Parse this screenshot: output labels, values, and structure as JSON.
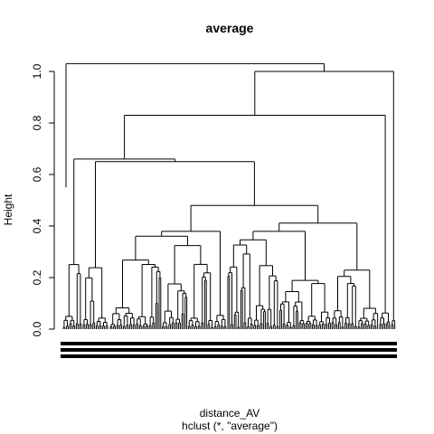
{
  "chart_data": {
    "type": "dendrogram",
    "title": "average",
    "xlabel": "distance_AV",
    "sub": "hclust (*, \"average\")",
    "ylabel": "Height",
    "ylim": [
      0,
      1.05
    ],
    "yticks": [
      0.0,
      0.2,
      0.4,
      0.6,
      0.8,
      1.0
    ],
    "ytick_labels": [
      "0.0",
      "0.2",
      "0.4",
      "0.6",
      "0.8",
      "1.0"
    ],
    "grid": false,
    "merges": [
      {
        "id": "root",
        "height": 1.03,
        "left": "L",
        "right": "R"
      },
      {
        "id": "R",
        "height": 1.0,
        "left": "R1",
        "right": "R2"
      },
      {
        "id": "R2",
        "height": 0.92
      },
      {
        "id": "R1",
        "height": 0.83,
        "left": "A",
        "right": "B"
      },
      {
        "id": "B",
        "height": 0.76
      },
      {
        "id": "A",
        "height": 0.66,
        "left": "A1",
        "right": "A2"
      },
      {
        "id": "A1",
        "height": 0.53
      },
      {
        "id": "A2",
        "height": 0.65,
        "left": "A2a",
        "right": "M"
      },
      {
        "id": "A2a",
        "height": 0.47
      },
      {
        "id": "M",
        "height": 0.48,
        "left": "M1",
        "right": "M2"
      },
      {
        "id": "M1",
        "height": 0.38
      },
      {
        "id": "M2",
        "height": 0.47
      }
    ]
  }
}
